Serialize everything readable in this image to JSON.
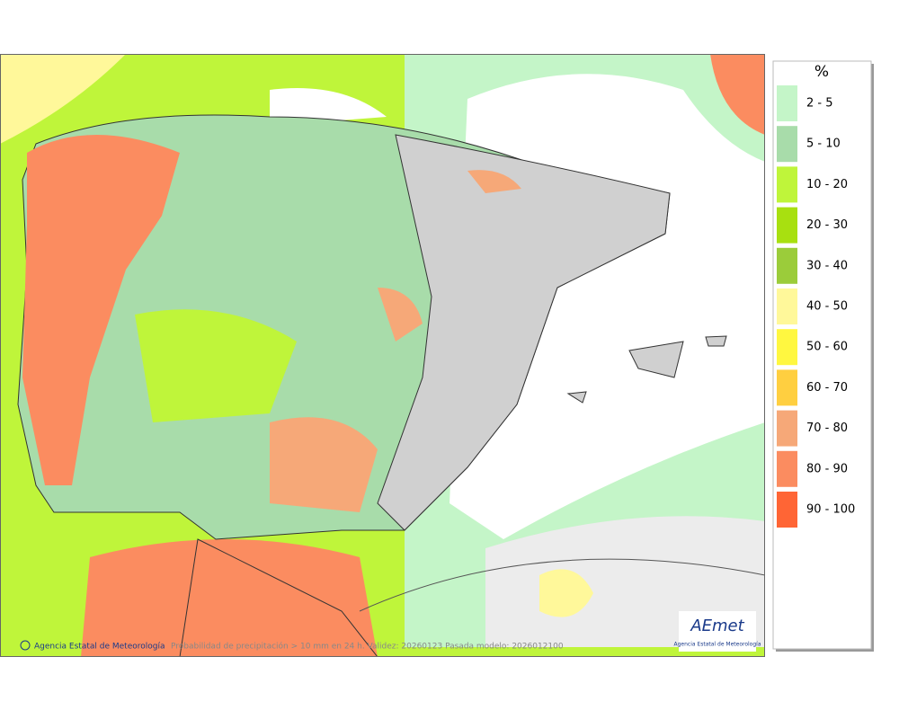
{
  "legend": {
    "title": "%",
    "items": [
      {
        "label": "2 - 5",
        "color": "#c4f5c8"
      },
      {
        "label": "5 - 10",
        "color": "#a8dcaa"
      },
      {
        "label": "10 - 20",
        "color": "#bff53a"
      },
      {
        "label": "20 - 30",
        "color": "#a8e010"
      },
      {
        "label": "30 - 40",
        "color": "#9bcc3a"
      },
      {
        "label": "40 - 50",
        "color": "#fff89a"
      },
      {
        "label": "50 - 60",
        "color": "#fff740"
      },
      {
        "label": "60 - 70",
        "color": "#ffcf40"
      },
      {
        "label": "70 - 80",
        "color": "#f6a878"
      },
      {
        "label": "80 - 90",
        "color": "#fb8c60"
      },
      {
        "label": "90 - 100",
        "color": "#ff6535"
      }
    ]
  },
  "footer": {
    "agency": "Agencia Estatal de Meteorología",
    "caption": "Probabilidad de precipitación > 10 mm en 24 h. Validez: 20260123 Pasada modelo: 2026012100"
  },
  "logo": {
    "name": "AEmet",
    "subtitle": "Agencia Estatal de Meteorología"
  }
}
